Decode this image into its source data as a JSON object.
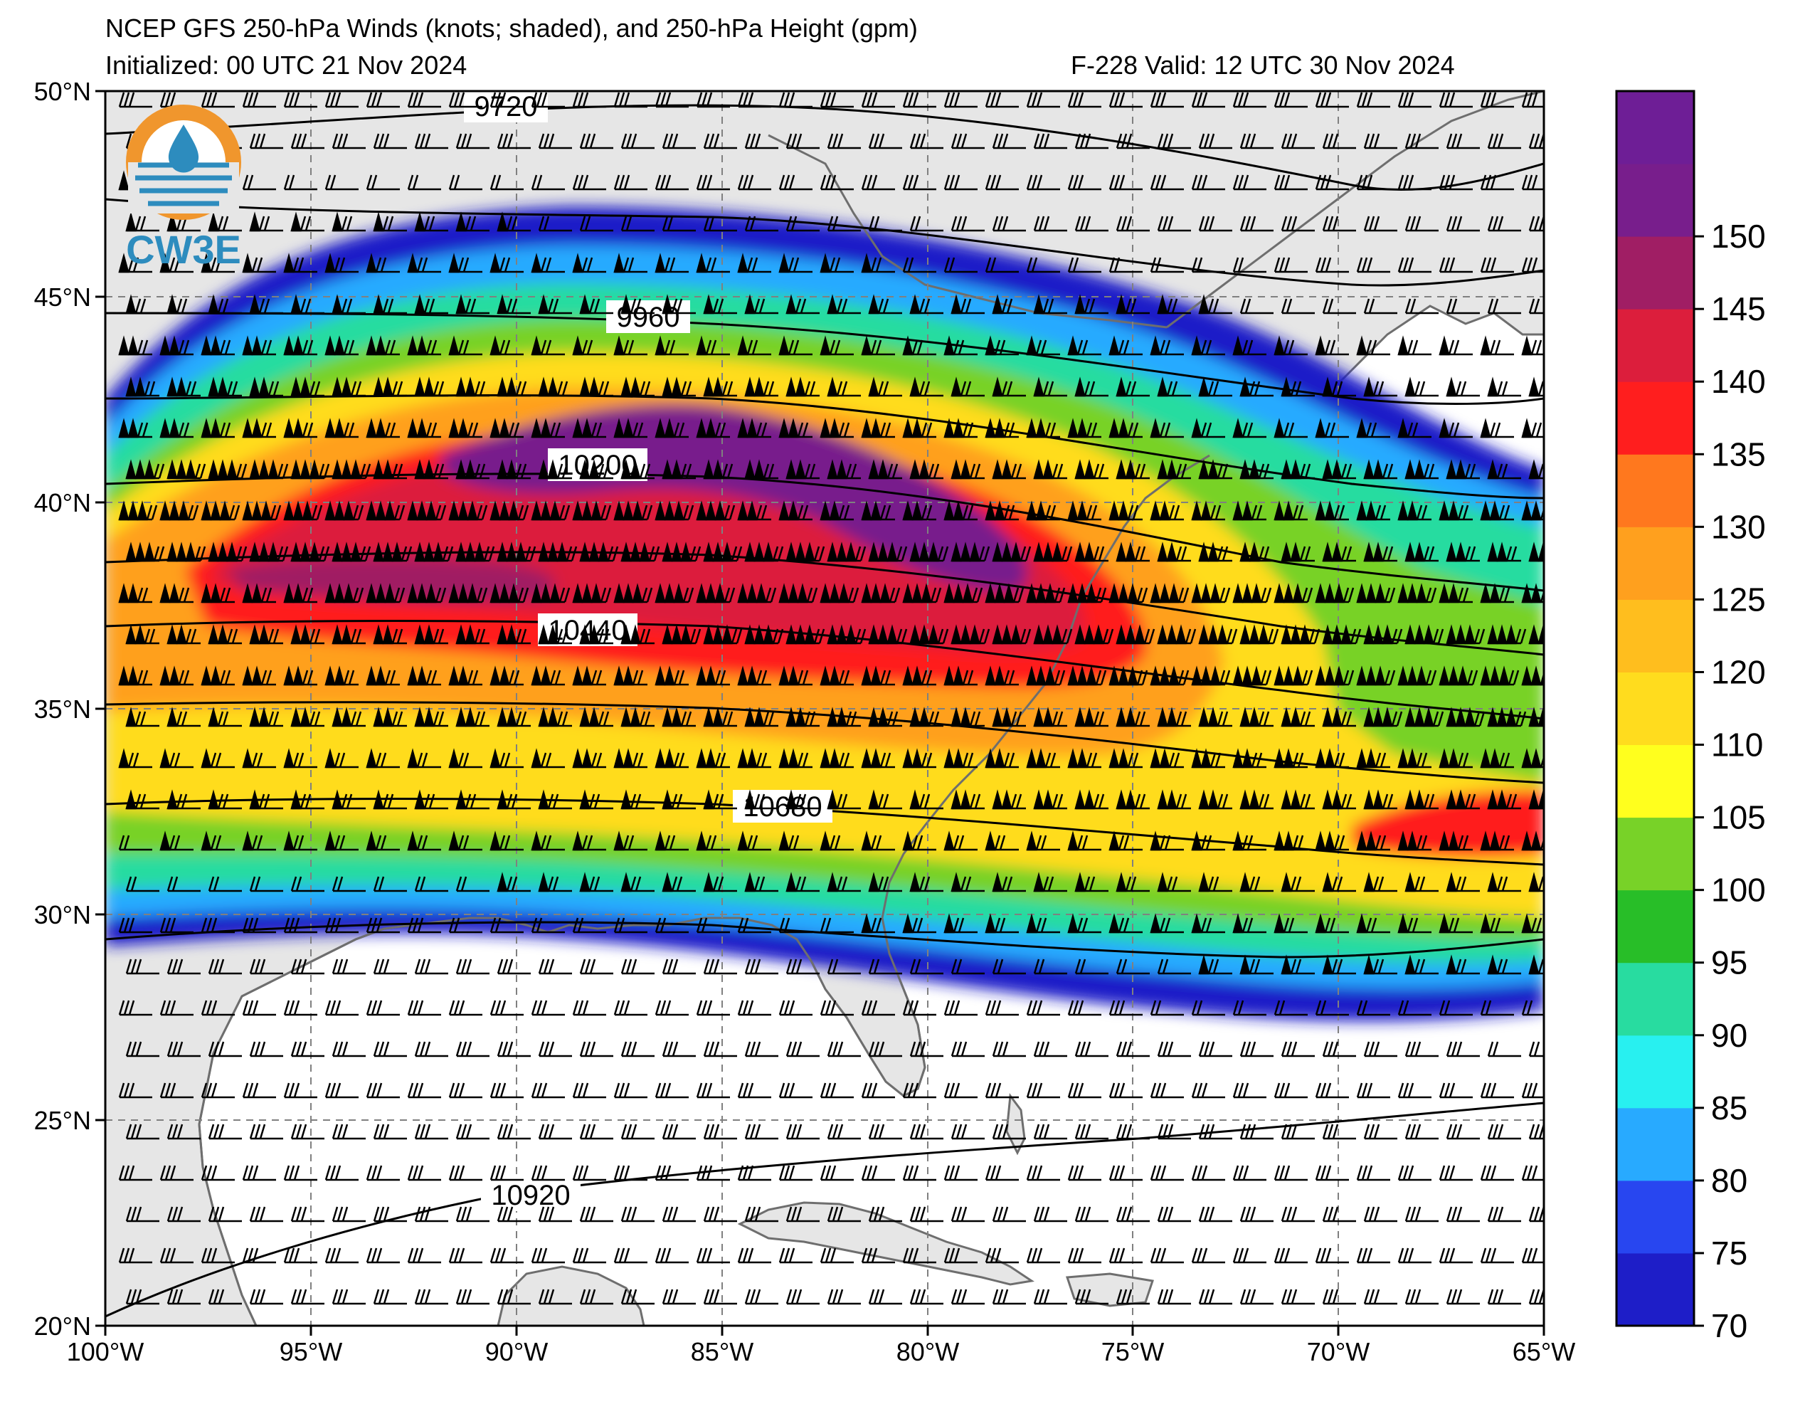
{
  "title": {
    "line1": "NCEP GFS 250-hPa Winds (knots; shaded), and 250-hPa Height (gpm)",
    "initialized": "Initialized: 00 UTC 21 Nov 2024",
    "valid": "F-228  Valid: 12 UTC 30 Nov 2024"
  },
  "logo": {
    "text": "CW3E"
  },
  "map": {
    "lat_labels": [
      "50°N",
      "45°N",
      "40°N",
      "35°N",
      "30°N",
      "25°N",
      "20°N"
    ],
    "lon_labels": [
      "100°W",
      "95°W",
      "90°W",
      "85°W",
      "80°W",
      "75°W",
      "70°W",
      "65°W"
    ],
    "lat_range": [
      20,
      50
    ],
    "lon_range": [
      -100,
      -65
    ],
    "grid": "dashed"
  },
  "height_contours": {
    "interval_gpm": 120,
    "labels": [
      "9720",
      "9960",
      "10200",
      "10440",
      "10680",
      "10920"
    ]
  },
  "colorbar": {
    "units": "knots",
    "ticks": [
      "70",
      "75",
      "80",
      "85",
      "90",
      "95",
      "100",
      "105",
      "110",
      "120",
      "125",
      "130",
      "135",
      "140",
      "145",
      "150"
    ],
    "colors": [
      "#1e1ec8",
      "#2846f0",
      "#28aaff",
      "#28f0f0",
      "#28dca0",
      "#28be28",
      "#78d228",
      "#ffff1e",
      "#ffdc1e",
      "#ffbe1e",
      "#ffa01e",
      "#ff781e",
      "#ff1e1e",
      "#dc1e3c",
      "#a01e64",
      "#781e8c",
      "#6e1e96"
    ]
  },
  "colors": {
    "land": "#e6e6e6",
    "ocean": "#ffffff",
    "coastline": "#6e6e6e",
    "logo_orange": "#f0962d",
    "logo_blue": "#2d8cbe"
  }
}
